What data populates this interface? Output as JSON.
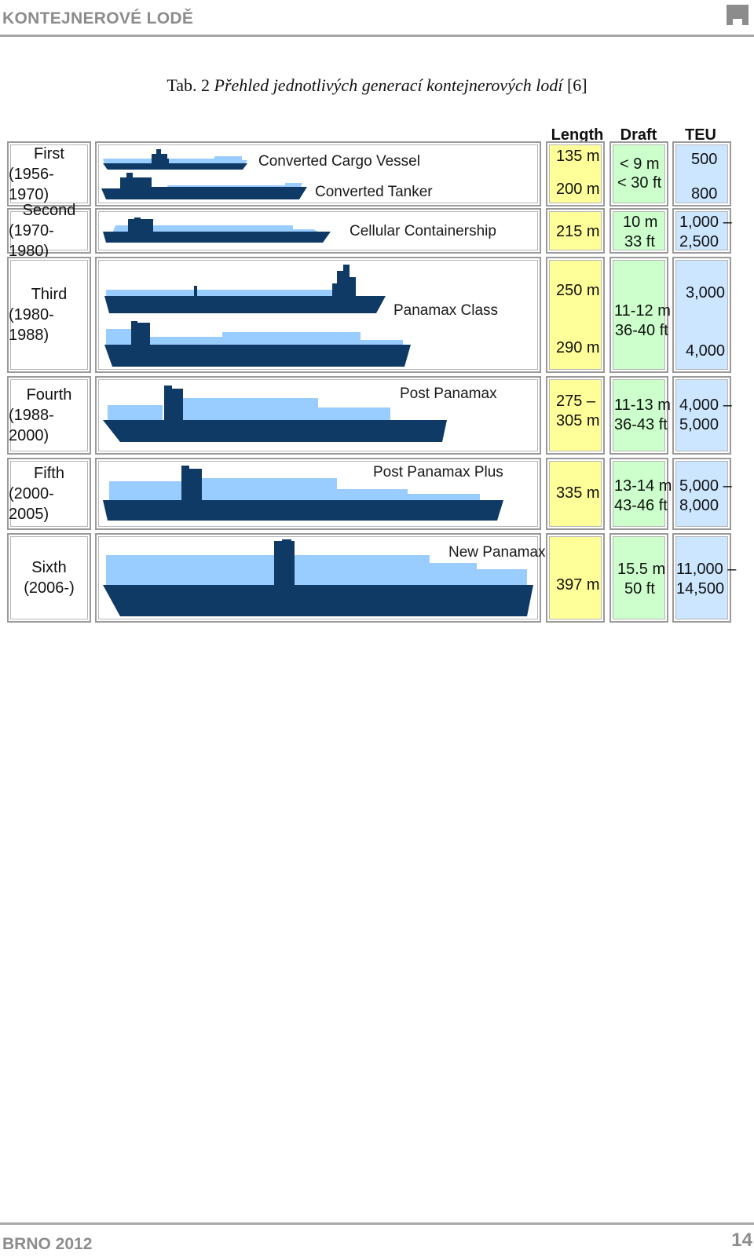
{
  "header": {
    "title": "KONTEJNEROVÉ LODĚ"
  },
  "caption": {
    "prefix": "Tab. 2 ",
    "italic": "Přehled jednotlivých generací kontejnerových lodí",
    "suffix": " [6]"
  },
  "table": {
    "columns": [
      "Length",
      "Draft",
      "TEU"
    ],
    "rows": [
      {
        "gen": "First",
        "years": "(1956-1970)",
        "ships": [
          "Converted Cargo Vessel",
          "Converted Tanker"
        ],
        "length": [
          "135 m",
          "200 m"
        ],
        "draft": [
          "< 9 m",
          "< 30 ft"
        ],
        "teu": [
          "500",
          "800"
        ]
      },
      {
        "gen": "Second",
        "years": "(1970-1980)",
        "ships": [
          "Cellular Containership"
        ],
        "length": [
          "215 m"
        ],
        "draft": [
          "10 m",
          "33 ft"
        ],
        "teu": [
          "1,000 –",
          "2,500"
        ]
      },
      {
        "gen": "Third",
        "years": "(1980-1988)",
        "ships": [
          "Panamax Class"
        ],
        "length": [
          "250 m",
          "290 m"
        ],
        "draft": [
          "11-12 m",
          "36-40 ft"
        ],
        "teu": [
          "3,000",
          "4,000"
        ]
      },
      {
        "gen": "Fourth",
        "years": "(1988-2000)",
        "ships": [
          "Post Panamax"
        ],
        "length": [
          "275 –",
          "305 m"
        ],
        "draft": [
          "11-13 m",
          "36-43 ft"
        ],
        "teu": [
          "4,000 –",
          "5,000"
        ]
      },
      {
        "gen": "Fifth",
        "years": "(2000-2005)",
        "ships": [
          "Post Panamax Plus"
        ],
        "length": [
          "335 m"
        ],
        "draft": [
          "13-14 m",
          "43-46 ft"
        ],
        "teu": [
          "5,000 –",
          "8,000"
        ]
      },
      {
        "gen": "Sixth",
        "years": "(2006-)",
        "ships": [
          "New Panamax"
        ],
        "length": [
          "397 m"
        ],
        "draft": [
          "15.5 m",
          "50 ft"
        ],
        "teu": [
          "11,000 –",
          "14,500"
        ]
      }
    ]
  },
  "colors": {
    "hull": "#103a66",
    "cargo": "#99ccff",
    "length_bg": "#ffff99",
    "draft_bg": "#ccffcc",
    "teu_bg": "#cce6ff"
  },
  "footer": {
    "left": "BRNO 2012",
    "page": "14"
  }
}
